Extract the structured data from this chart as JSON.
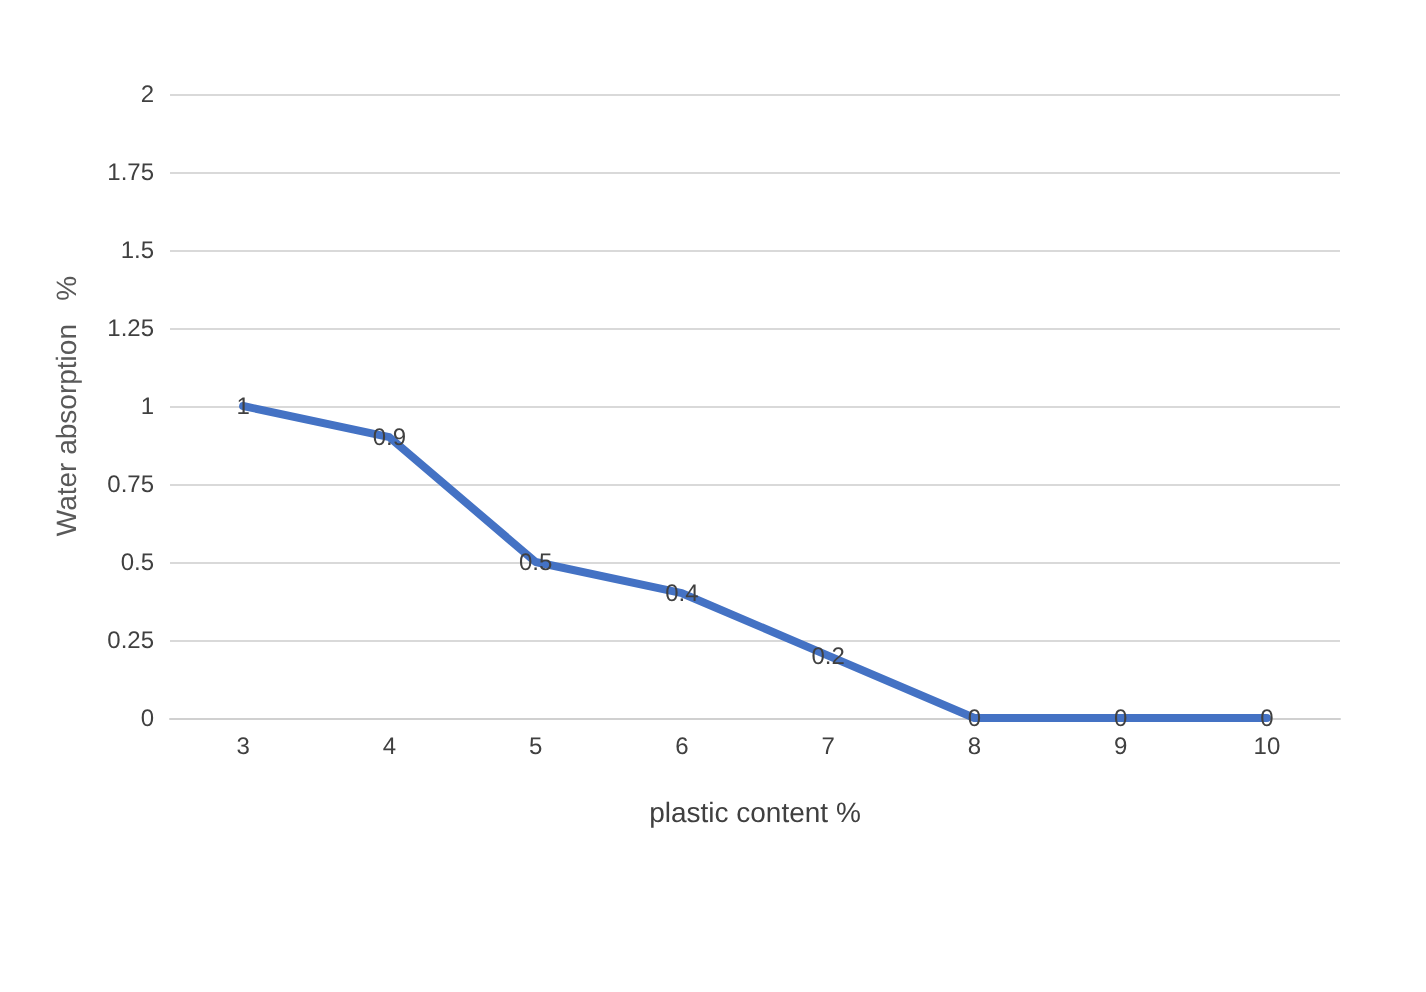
{
  "chart_data": {
    "type": "line",
    "xlabel": "plastic content %",
    "ylabel": "Water absorption   %",
    "categories": [
      "3",
      "4",
      "5",
      "6",
      "7",
      "8",
      "9",
      "10"
    ],
    "series": [
      {
        "color": "#4472c4",
        "values": [
          1,
          0.9,
          0.5,
          0.4,
          0.2,
          0,
          0,
          0
        ]
      }
    ],
    "ylim": [
      0,
      2
    ],
    "yticks": [
      0,
      0.25,
      0.5,
      0.75,
      1,
      1.25,
      1.5,
      1.75,
      2
    ],
    "grid": "y",
    "marker": "none",
    "line_style": "solid",
    "data_labels": true
  }
}
